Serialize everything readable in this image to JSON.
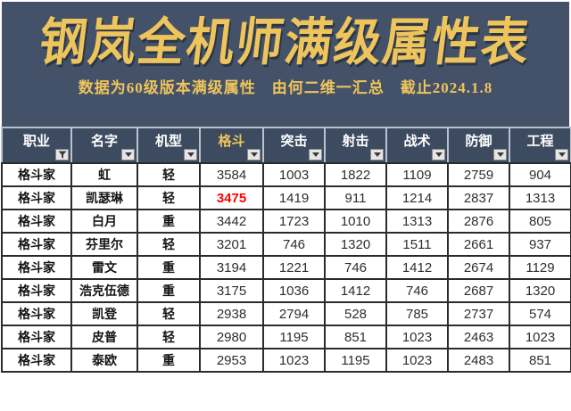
{
  "banner": {
    "title": "钢岚全机师满级属性表",
    "subtitle": "数据为60级版本满级属性　由何二维一汇总　截止2024.1.8"
  },
  "table": {
    "columns": [
      {
        "label": "职业",
        "filter_icon": "funnel-filter-icon",
        "filter_applied": true
      },
      {
        "label": "名字",
        "filter_icon": "dropdown-arrow-icon"
      },
      {
        "label": "机型",
        "filter_icon": "dropdown-arrow-icon"
      },
      {
        "label": "格斗",
        "filter_icon": "dropdown-arrow-icon",
        "accent": true
      },
      {
        "label": "突击",
        "filter_icon": "dropdown-arrow-icon"
      },
      {
        "label": "射击",
        "filter_icon": "dropdown-arrow-icon"
      },
      {
        "label": "战术",
        "filter_icon": "dropdown-arrow-icon"
      },
      {
        "label": "防御",
        "filter_icon": "dropdown-arrow-icon"
      },
      {
        "label": "工程",
        "filter_icon": "dropdown-arrow-icon"
      }
    ],
    "rows": [
      {
        "cells": [
          "格斗家",
          "虹",
          "轻",
          "3584",
          "1003",
          "1822",
          "1109",
          "2759",
          "904"
        ]
      },
      {
        "cells": [
          "格斗家",
          "凯瑟琳",
          "轻",
          "3475",
          "1419",
          "911",
          "1214",
          "2837",
          "1313"
        ],
        "red_col": 3
      },
      {
        "cells": [
          "格斗家",
          "白月",
          "重",
          "3442",
          "1723",
          "1010",
          "1313",
          "2876",
          "805"
        ]
      },
      {
        "cells": [
          "格斗家",
          "芬里尔",
          "轻",
          "3201",
          "746",
          "1320",
          "1511",
          "2661",
          "937"
        ]
      },
      {
        "cells": [
          "格斗家",
          "雷文",
          "重",
          "3194",
          "1221",
          "746",
          "1412",
          "2674",
          "1129"
        ]
      },
      {
        "cells": [
          "格斗家",
          "浩克伍德",
          "重",
          "3175",
          "1036",
          "1412",
          "746",
          "2687",
          "1320"
        ]
      },
      {
        "cells": [
          "格斗家",
          "凯登",
          "轻",
          "2938",
          "2794",
          "528",
          "785",
          "2737",
          "574"
        ]
      },
      {
        "cells": [
          "格斗家",
          "皮普",
          "轻",
          "2980",
          "1195",
          "851",
          "1023",
          "2463",
          "1023"
        ]
      },
      {
        "cells": [
          "格斗家",
          "泰欧",
          "重",
          "2953",
          "1023",
          "1195",
          "1023",
          "2483",
          "851"
        ]
      }
    ]
  },
  "colors": {
    "banner_bg": "#445269",
    "header_bg": "#3d4b61",
    "accent_gold": "#eec45c",
    "red_value": "#ff0000",
    "cell_border": "#2b2b2b",
    "header_border": "#b9c2cd"
  }
}
